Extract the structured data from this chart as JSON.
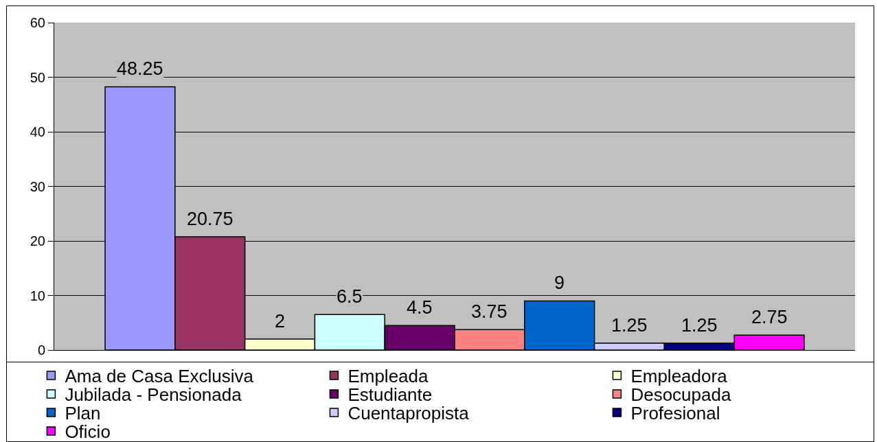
{
  "chart_data": {
    "type": "bar",
    "categories": [
      null
    ],
    "series": [
      {
        "name": "Ama de Casa Exclusiva",
        "color": "#9999ff",
        "values": [
          48.25
        ]
      },
      {
        "name": "Empleada",
        "color": "#993366",
        "values": [
          20.75
        ]
      },
      {
        "name": "Empleadora",
        "color": "#ffffcc",
        "values": [
          2
        ]
      },
      {
        "name": "Jubilada - Pensionada",
        "color": "#ccffff",
        "values": [
          6.5
        ]
      },
      {
        "name": "Estudiante",
        "color": "#660066",
        "values": [
          4.5
        ]
      },
      {
        "name": "Desocupada",
        "color": "#ff8080",
        "values": [
          3.75
        ]
      },
      {
        "name": "Plan",
        "color": "#0066cc",
        "values": [
          9
        ]
      },
      {
        "name": "Cuentapropista",
        "color": "#ccccff",
        "values": [
          1.25
        ]
      },
      {
        "name": "Profesional",
        "color": "#000080",
        "values": [
          1.25
        ]
      },
      {
        "name": "Oficio",
        "color": "#ff00ff",
        "values": [
          2.75
        ]
      }
    ],
    "ylim": [
      0,
      60
    ],
    "yticks": [
      0,
      10,
      20,
      30,
      40,
      50,
      60
    ],
    "grid": "y",
    "legend": "bottom",
    "data_labels": true
  }
}
